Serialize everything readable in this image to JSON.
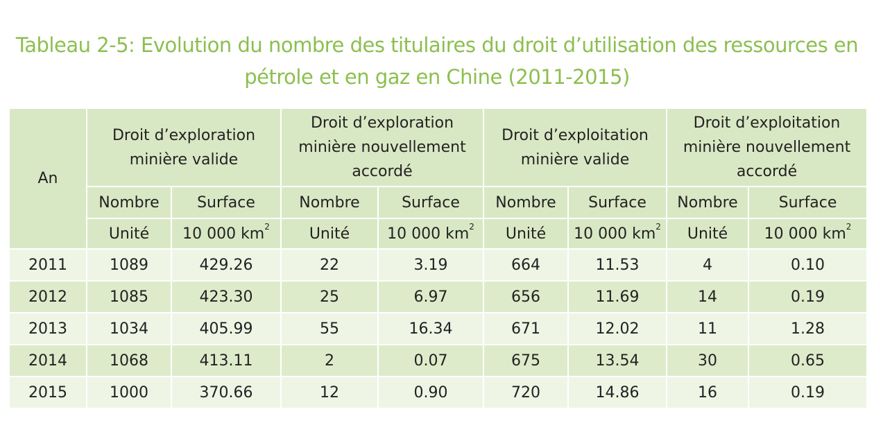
{
  "title_line1": "Tableau 2-5: Evolution du nombre des titulaires du droit d’utilisation des ressources en",
  "title_line2": "pétrole et en gaz en Chine (2011-2015)",
  "header": {
    "year_label": "An",
    "groups": [
      {
        "line1": "Droit d’exploration",
        "line2": "minière valide",
        "line3": ""
      },
      {
        "line1": "Droit d’exploration",
        "line2": "minière nouvellement",
        "line3": "accordé"
      },
      {
        "line1": "Droit d’exploitation",
        "line2": "minière valide",
        "line3": ""
      },
      {
        "line1": "Droit d’exploitation",
        "line2": "minière nouvellement",
        "line3": "accordé"
      }
    ],
    "sub_number": "Nombre",
    "sub_surface": "Surface",
    "unit_number": "Unité",
    "unit_surface": "10 000 km",
    "unit_surface_exp": "2"
  },
  "rows": [
    {
      "year": "2011",
      "v": [
        "1089",
        "429.26",
        "22",
        "3.19",
        "664",
        "11.53",
        "4",
        "0.10"
      ]
    },
    {
      "year": "2012",
      "v": [
        "1085",
        "423.30",
        "25",
        "6.97",
        "656",
        "11.69",
        "14",
        "0.19"
      ]
    },
    {
      "year": "2013",
      "v": [
        "1034",
        "405.99",
        "55",
        "16.34",
        "671",
        "12.02",
        "11",
        "1.28"
      ]
    },
    {
      "year": "2014",
      "v": [
        "1068",
        "413.11",
        "2",
        "0.07",
        "675",
        "13.54",
        "30",
        "0.65"
      ]
    },
    {
      "year": "2015",
      "v": [
        "1000",
        "370.66",
        "12",
        "0.90",
        "720",
        "14.86",
        "16",
        "0.19"
      ]
    }
  ],
  "colors": {
    "title": "#8cbf4f",
    "header_bg": "#d9e8c4",
    "row_light": "#eef5e5",
    "row_dark": "#deebcb"
  }
}
